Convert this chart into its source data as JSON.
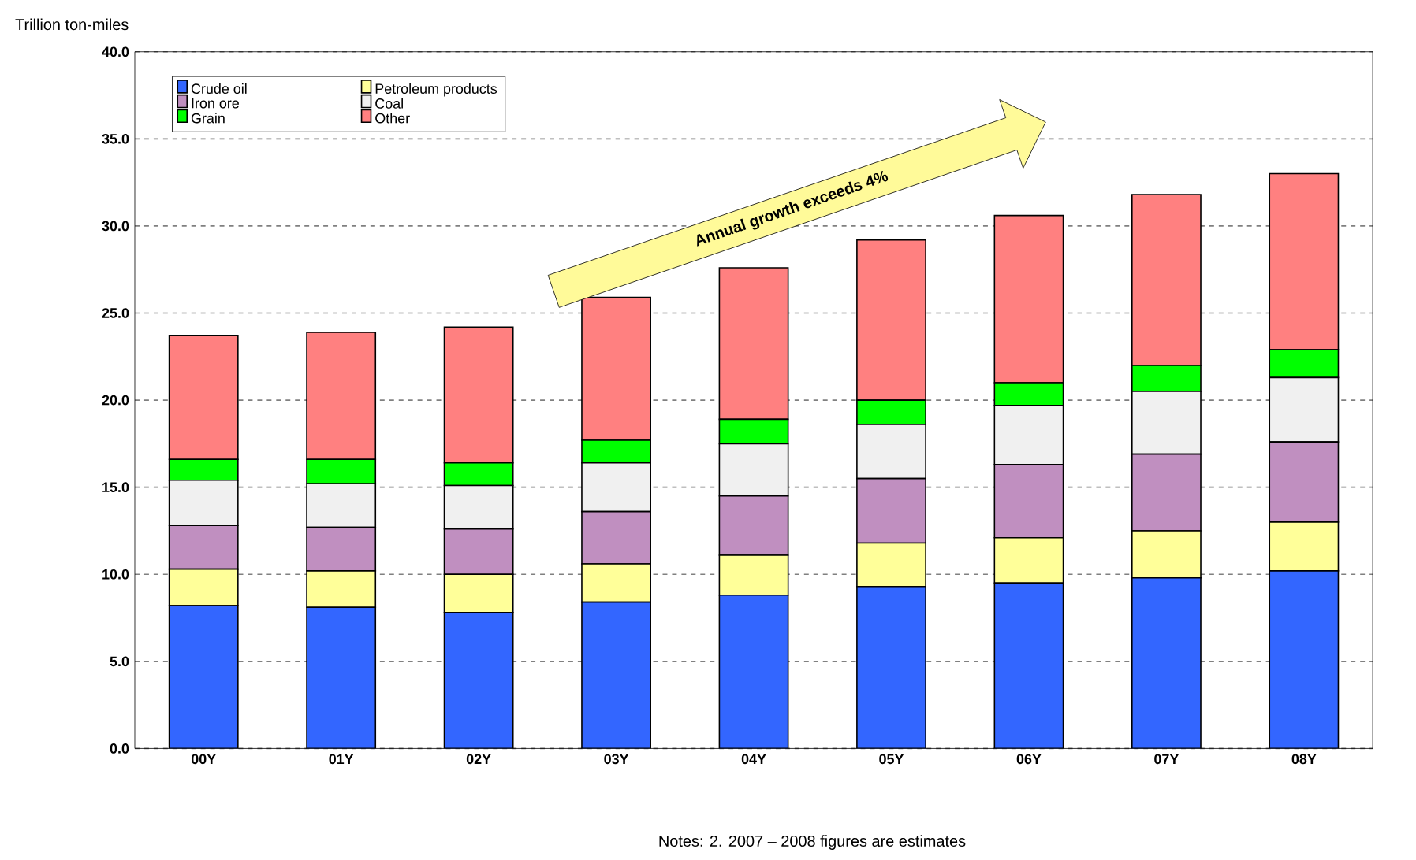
{
  "chart_data": {
    "type": "bar",
    "stacked": true,
    "ylabel": "Trillion ton-miles",
    "categories": [
      "00Y",
      "01Y",
      "02Y",
      "03Y",
      "04Y",
      "05Y",
      "06Y",
      "07Y",
      "08Y"
    ],
    "series": [
      {
        "name": "Crude oil",
        "color": "#3366ff",
        "values": [
          8.2,
          8.1,
          7.8,
          8.4,
          8.8,
          9.3,
          9.5,
          9.8,
          10.2
        ]
      },
      {
        "name": "Petroleum products",
        "color": "#ffff99",
        "values": [
          2.1,
          2.1,
          2.2,
          2.2,
          2.3,
          2.5,
          2.6,
          2.7,
          2.8
        ]
      },
      {
        "name": "Iron ore",
        "color": "#c08fc0",
        "values": [
          2.5,
          2.5,
          2.6,
          3.0,
          3.4,
          3.7,
          4.2,
          4.4,
          4.6
        ]
      },
      {
        "name": "Coal",
        "color": "#f0f0f0",
        "values": [
          2.6,
          2.5,
          2.5,
          2.8,
          3.0,
          3.1,
          3.4,
          3.6,
          3.7
        ]
      },
      {
        "name": "Grain",
        "color": "#00ff00",
        "values": [
          1.2,
          1.4,
          1.3,
          1.3,
          1.4,
          1.4,
          1.3,
          1.5,
          1.6
        ]
      },
      {
        "name": "Other",
        "color": "#ff8080",
        "values": [
          7.1,
          7.3,
          7.8,
          8.2,
          8.7,
          9.2,
          9.6,
          9.8,
          10.1
        ]
      }
    ],
    "ylim": [
      0,
      40
    ],
    "yticks": [
      {
        "value": 0,
        "label": "0.0"
      },
      {
        "value": 5,
        "label": "5.0"
      },
      {
        "value": 10,
        "label": "10.0"
      },
      {
        "value": 15,
        "label": "15.0"
      },
      {
        "value": 20,
        "label": "20.0"
      },
      {
        "value": 25,
        "label": "25.0"
      },
      {
        "value": 30,
        "label": "30.0"
      },
      {
        "value": 35,
        "label": "35.0"
      },
      {
        "value": 40,
        "label": "40.0"
      }
    ],
    "grid": "y",
    "legend": "top left",
    "annotations": [
      "Annual growth exceeds 4%",
      "Notes: 2. 2007 – 2008 figures are estimates"
    ]
  }
}
